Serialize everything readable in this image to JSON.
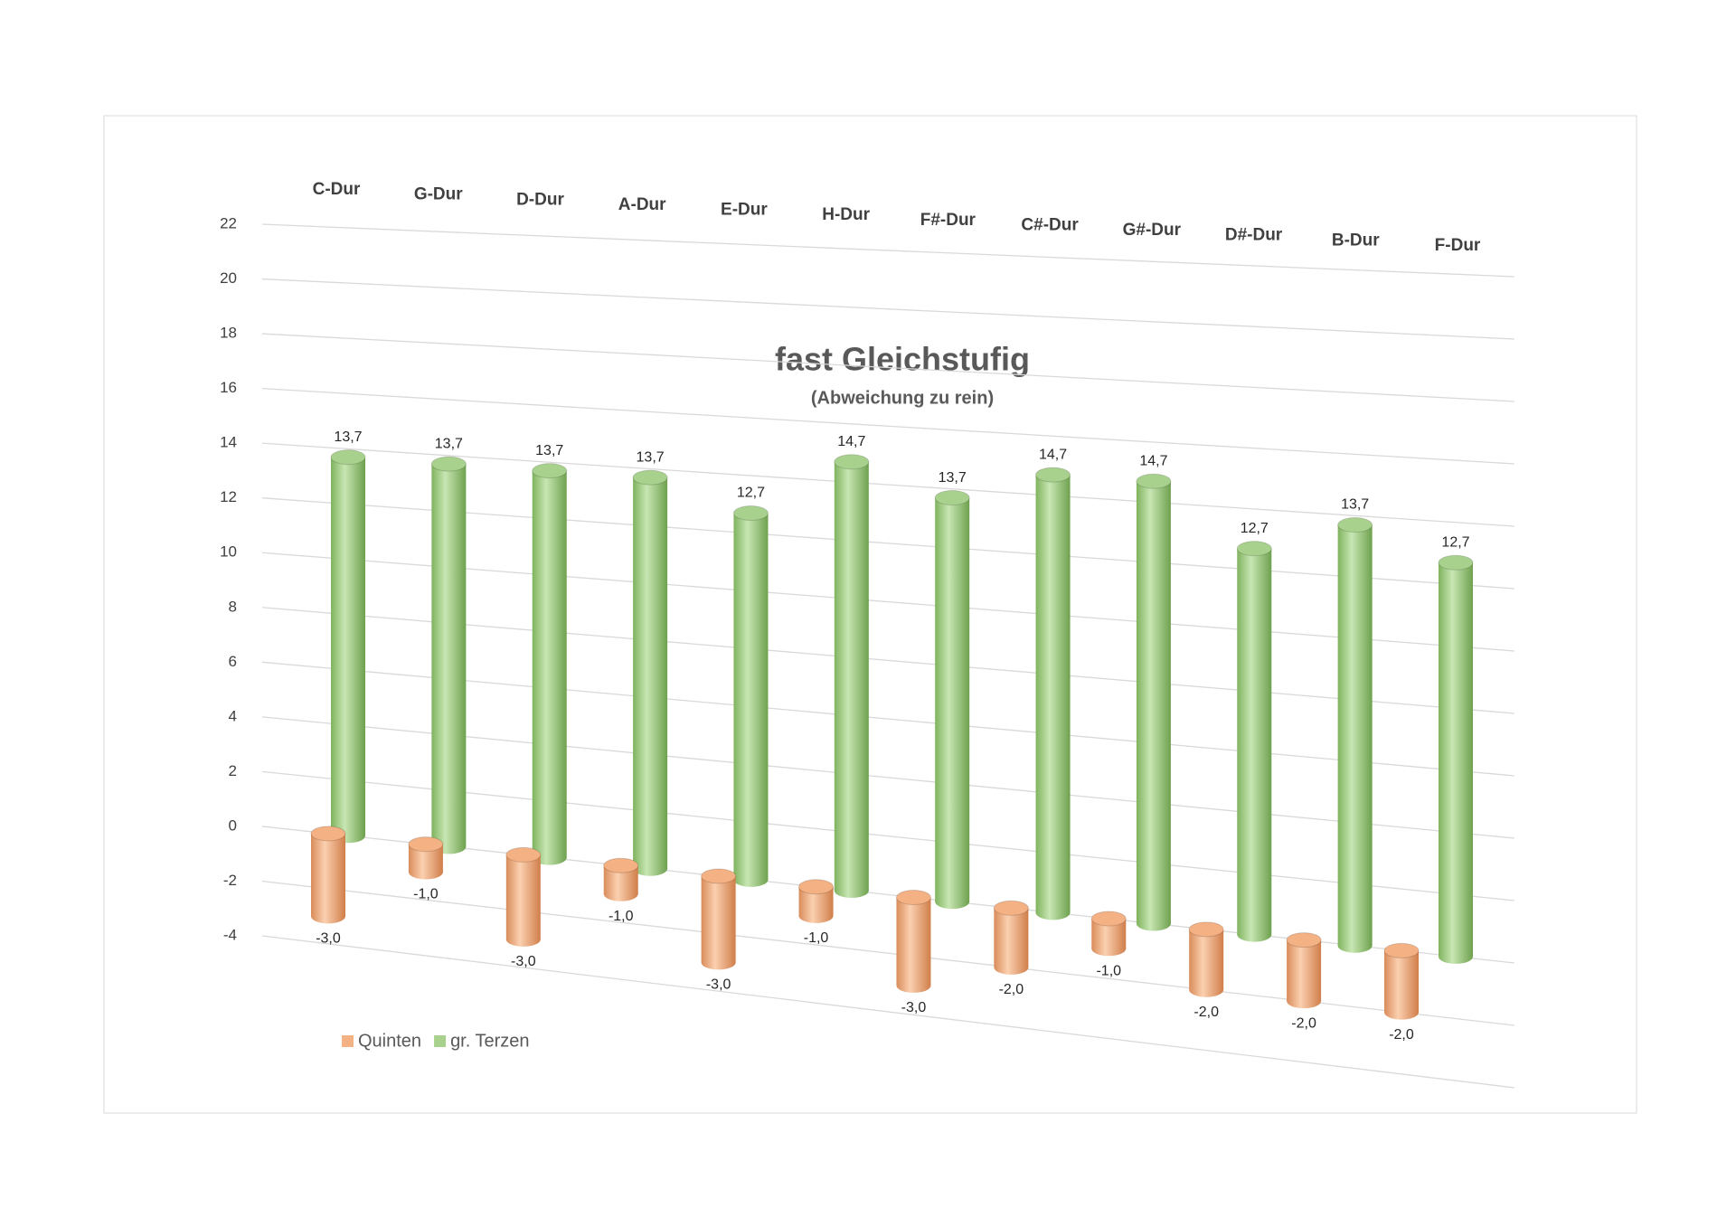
{
  "chart_data": {
    "type": "bar3d",
    "title": "fast Gleichstufig",
    "subtitle": "(Abweichung zu rein)",
    "categories": [
      "C-Dur",
      "G-Dur",
      "D-Dur",
      "A-Dur",
      "E-Dur",
      "H-Dur",
      "F#-Dur",
      "C#-Dur",
      "G#-Dur",
      "D#-Dur",
      "B-Dur",
      "F-Dur"
    ],
    "series": [
      {
        "name": "Quinten",
        "color": "#f4b183",
        "values": [
          -3,
          -1,
          -3,
          -1,
          -3,
          -1,
          -3,
          -2,
          -1,
          -2,
          -2,
          -2
        ],
        "value_labels": [
          "-3,0",
          "-1,0",
          "-3,0",
          "-1,0",
          "-3,0",
          "-1,0",
          "-3,0",
          "-2,0",
          "-1,0",
          "-2,0",
          "-2,0",
          "-2,0"
        ]
      },
      {
        "name": "gr. Terzen",
        "color": "#a9d18e",
        "values": [
          13.7,
          13.7,
          13.7,
          13.7,
          12.7,
          14.7,
          13.7,
          14.7,
          14.7,
          12.7,
          13.7,
          12.7
        ],
        "value_labels": [
          "13,7",
          "13,7",
          "13,7",
          "13,7",
          "12,7",
          "14,7",
          "13,7",
          "14,7",
          "14,7",
          "12,7",
          "13,7",
          "12,7"
        ]
      }
    ],
    "ylim": [
      -4,
      22
    ],
    "yticks": [
      -4,
      -2,
      0,
      2,
      4,
      6,
      8,
      10,
      12,
      14,
      16,
      18,
      20,
      22
    ],
    "grid": true,
    "legend": "bottom-left"
  }
}
